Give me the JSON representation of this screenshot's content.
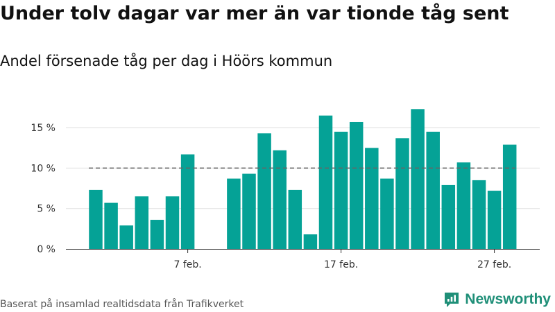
{
  "title": "Under tolv dagar var mer än var tionde tåg sent",
  "subtitle": "Andel försenade tåg per dag i Höörs kommun",
  "source": "Baserat på insamlad realtidsdata från Trafikverket",
  "brand": {
    "name": "Newsworthy",
    "logo_icon": "newsworthy-logo-icon"
  },
  "colors": {
    "bar": "#05a296",
    "reference_line": "#666666",
    "grid": "#dddddd",
    "brand": "#1f8f78"
  },
  "chart_data": {
    "type": "bar",
    "x": [
      1,
      2,
      3,
      4,
      5,
      6,
      7,
      8,
      9,
      10,
      11,
      12,
      13,
      14,
      15,
      16,
      17,
      18,
      19,
      20,
      21,
      22,
      23,
      24,
      25,
      26,
      27,
      28
    ],
    "values": [
      7.3,
      5.7,
      2.9,
      6.5,
      3.6,
      6.5,
      11.7,
      null,
      null,
      8.7,
      9.3,
      14.3,
      12.2,
      7.3,
      1.8,
      16.5,
      14.5,
      15.7,
      12.5,
      8.7,
      13.7,
      17.3,
      14.5,
      7.9,
      10.7,
      8.5,
      7.2,
      12.9
    ],
    "x_ticks": [
      {
        "x": 7,
        "label": "7 feb."
      },
      {
        "x": 17,
        "label": "17 feb."
      },
      {
        "x": 27,
        "label": "27 feb."
      }
    ],
    "y_ticks": [
      {
        "value": 0,
        "label": "0 %"
      },
      {
        "value": 5,
        "label": "5 %"
      },
      {
        "value": 10,
        "label": "10 %"
      },
      {
        "value": 15,
        "label": "15 %"
      }
    ],
    "ylim": [
      0,
      17.5
    ],
    "reference_line": {
      "value": 10,
      "style": "dashed"
    },
    "grid": true,
    "legend": false
  }
}
